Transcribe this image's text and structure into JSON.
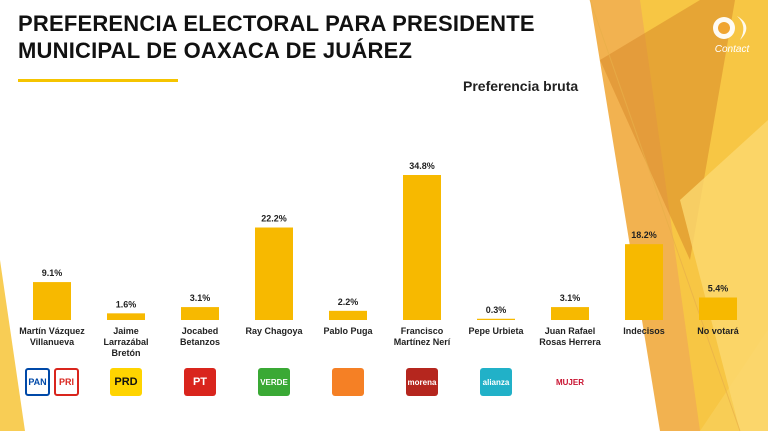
{
  "page": {
    "title_line1": "PREFERENCIA ELECTORAL PARA PRESIDENTE",
    "title_line2": "MUNICIPAL DE OAXACA DE JUÁREZ",
    "subtitle": "Preferencia bruta",
    "brand_name": "Contact"
  },
  "colors": {
    "bar": "#f7b900",
    "bg_orange": "#f0a531",
    "bg_yellow": "#f7c842",
    "bg_dark": "#d98a2a"
  },
  "party_logos": [
    {
      "candidate": "Martín Vázquez Villanueva",
      "text": [
        "PAN",
        "PRI"
      ],
      "icons": [
        "pan-logo-icon",
        "pri-logo-icon"
      ],
      "colors": [
        "#0049a8",
        "#d9251d"
      ]
    },
    {
      "candidate": "Jaime Larrazábal Bretón",
      "text": [
        "PRD"
      ],
      "icons": [
        "prd-logo-icon"
      ],
      "colors": [
        "#ffd400"
      ]
    },
    {
      "candidate": "Jocabed Betanzos",
      "text": [
        "PT"
      ],
      "icons": [
        "pt-logo-icon"
      ],
      "colors": [
        "#d9251d"
      ]
    },
    {
      "candidate": "Ray Chagoya",
      "text": [
        "VERDE"
      ],
      "icons": [
        "verde-logo-icon"
      ],
      "colors": [
        "#3aa935"
      ]
    },
    {
      "candidate": "Pablo Puga",
      "text": [
        ""
      ],
      "icons": [
        "movimiento-ciudadano-logo-icon"
      ],
      "colors": [
        "#f58025"
      ]
    },
    {
      "candidate": "Francisco Martínez Nerí",
      "text": [
        "morena"
      ],
      "icons": [
        "morena-logo-icon"
      ],
      "colors": [
        "#b5261e"
      ]
    },
    {
      "candidate": "Pepe Urbieta",
      "text": [
        "alianza"
      ],
      "icons": [
        "alianza-logo-icon"
      ],
      "colors": [
        "#21b1c8"
      ]
    },
    {
      "candidate": "Juan Rafael Rosas Herrera",
      "text": [
        "MUJER"
      ],
      "icons": [
        "mujer-logo-icon"
      ],
      "colors": [
        "#c8102e"
      ]
    }
  ],
  "chart_data": {
    "type": "bar",
    "title": "PREFERENCIA ELECTORAL PARA PRESIDENTE MUNICIPAL DE OAXACA DE JUÁREZ",
    "subtitle": "Preferencia bruta",
    "categories": [
      [
        "Martín Vázquez",
        "Villanueva"
      ],
      [
        "Jaime",
        "Larrazábal",
        "Bretón"
      ],
      [
        "Jocabed",
        "Betanzos"
      ],
      [
        "Ray Chagoya"
      ],
      [
        "Pablo Puga"
      ],
      [
        "Francisco",
        "Martínez Nerí"
      ],
      [
        "Pepe Urbieta"
      ],
      [
        "Juan Rafael",
        "Rosas Herrera"
      ],
      [
        "Indecisos"
      ],
      [
        "No votará"
      ]
    ],
    "values": [
      9.1,
      1.6,
      3.1,
      22.2,
      2.2,
      34.8,
      0.3,
      3.1,
      18.2,
      5.4
    ],
    "value_labels": [
      "9.1%",
      "1.6%",
      "3.1%",
      "22.2%",
      "2.2%",
      "34.8%",
      "0.3%",
      "3.1%",
      "18.2%",
      "5.4%"
    ],
    "ylim": [
      0,
      36
    ],
    "grid": false,
    "legend": "none"
  }
}
